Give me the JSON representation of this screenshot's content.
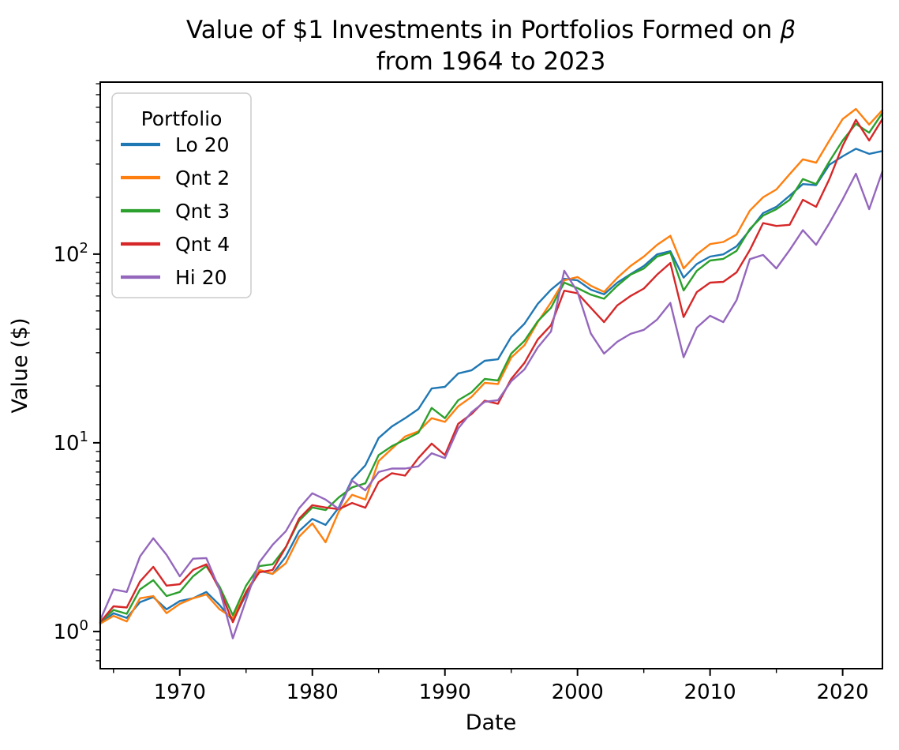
{
  "figure": {
    "title_line1_prefix": "Value of $1 Investments in Portfolios Formed on ",
    "title_line1_beta": "β",
    "title_line2": "from 1964 to 2023",
    "x_axis_label": "Date",
    "y_axis_label": "Value ($)"
  },
  "legend": {
    "title": "Portfolio"
  },
  "chart_data": {
    "type": "line",
    "title": "Value of $1 Investments in Portfolios Formed on β from 1964 to 2023",
    "xlabel": "Date",
    "ylabel": "Value ($)",
    "x_scale": "linear",
    "y_scale": "log",
    "grid": false,
    "legend_title": "Portfolio",
    "legend_position": "upper left",
    "xlim": [
      1964,
      2023
    ],
    "ylim": [
      0.635,
      816
    ],
    "x_major_ticks": [
      1970,
      1980,
      1990,
      2000,
      2010,
      2020
    ],
    "x_minor_ticks": [
      1965,
      1975,
      1985,
      1995,
      2005,
      2015
    ],
    "y_major_tick_exponents": [
      0,
      1,
      2
    ],
    "years": [
      1964,
      1965,
      1966,
      1967,
      1968,
      1969,
      1970,
      1971,
      1972,
      1973,
      1974,
      1975,
      1976,
      1977,
      1978,
      1979,
      1980,
      1981,
      1982,
      1983,
      1984,
      1985,
      1986,
      1987,
      1988,
      1989,
      1990,
      1991,
      1992,
      1993,
      1994,
      1995,
      1996,
      1997,
      1998,
      1999,
      2000,
      2001,
      2002,
      2003,
      2004,
      2005,
      2006,
      2007,
      2008,
      2009,
      2010,
      2011,
      2012,
      2013,
      2014,
      2015,
      2016,
      2017,
      2018,
      2019,
      2020,
      2021,
      2022,
      2023
    ],
    "series": [
      {
        "name": "Lo 20",
        "color": "#1f77b4",
        "values": [
          1.1,
          1.25,
          1.18,
          1.43,
          1.52,
          1.31,
          1.45,
          1.5,
          1.62,
          1.38,
          1.14,
          1.57,
          2.1,
          2.02,
          2.5,
          3.4,
          3.95,
          3.67,
          4.54,
          6.4,
          7.6,
          10.6,
          12.2,
          13.5,
          15.1,
          19.4,
          19.8,
          23.3,
          24.2,
          27.2,
          27.7,
          36.4,
          42.8,
          54.5,
          64.8,
          74.0,
          72.6,
          64.8,
          61.2,
          70.6,
          78.3,
          86.5,
          99.7,
          103.6,
          75.0,
          88.6,
          97.0,
          99.7,
          110,
          134,
          165,
          178,
          204,
          235,
          232,
          298,
          330,
          362,
          340,
          352
        ]
      },
      {
        "name": "Qnt 2",
        "color": "#ff7f0e",
        "values": [
          1.1,
          1.21,
          1.13,
          1.5,
          1.54,
          1.25,
          1.4,
          1.5,
          1.57,
          1.31,
          1.18,
          1.62,
          2.12,
          2.02,
          2.3,
          3.18,
          3.74,
          2.97,
          4.33,
          5.3,
          5.0,
          8.0,
          9.3,
          10.8,
          11.5,
          13.5,
          12.9,
          15.6,
          17.5,
          20.8,
          20.5,
          28.3,
          32.9,
          43.6,
          55.5,
          72.6,
          75.6,
          68.0,
          63.0,
          74.9,
          86.5,
          97.0,
          112,
          125,
          84.0,
          99.7,
          113,
          116,
          127,
          170,
          200,
          220,
          265,
          318,
          305,
          400,
          520,
          588,
          486,
          580
        ]
      },
      {
        "name": "Qnt 3",
        "color": "#2ca02c",
        "values": [
          1.12,
          1.3,
          1.24,
          1.67,
          1.87,
          1.54,
          1.62,
          1.96,
          2.22,
          1.73,
          1.22,
          1.75,
          2.22,
          2.27,
          2.8,
          3.86,
          4.54,
          4.4,
          5.14,
          5.8,
          6.1,
          8.6,
          9.6,
          10.4,
          11.3,
          15.3,
          13.5,
          16.8,
          18.5,
          21.8,
          21.4,
          29.7,
          34.7,
          44.1,
          52.0,
          70.6,
          66.0,
          61.0,
          58.0,
          68.0,
          77.8,
          83.9,
          97.0,
          102,
          64.2,
          81.5,
          92.5,
          94.4,
          104,
          136,
          160,
          173,
          194,
          250,
          235,
          310,
          400,
          490,
          440,
          560
        ]
      },
      {
        "name": "Qnt 4",
        "color": "#d62728",
        "values": [
          1.12,
          1.36,
          1.34,
          1.84,
          2.2,
          1.75,
          1.78,
          2.12,
          2.27,
          1.67,
          1.12,
          1.62,
          2.06,
          2.12,
          2.8,
          3.96,
          4.67,
          4.54,
          4.45,
          4.8,
          4.53,
          6.2,
          6.9,
          6.7,
          8.3,
          9.9,
          8.6,
          12.6,
          14.2,
          16.7,
          16.1,
          21.8,
          26.5,
          35.3,
          42.0,
          64.0,
          62.0,
          52.0,
          43.6,
          53.5,
          60.0,
          65.7,
          77.8,
          89.8,
          46.4,
          62.9,
          70.6,
          71.3,
          80.0,
          105,
          146,
          141,
          143,
          194,
          178,
          250,
          375,
          515,
          400,
          520
        ]
      },
      {
        "name": "Hi 20",
        "color": "#9467bd",
        "values": [
          1.15,
          1.67,
          1.62,
          2.5,
          3.12,
          2.55,
          1.96,
          2.43,
          2.45,
          1.67,
          0.92,
          1.47,
          2.33,
          2.88,
          3.4,
          4.5,
          5.4,
          5.0,
          4.45,
          6.3,
          5.6,
          7.0,
          7.3,
          7.3,
          7.5,
          8.8,
          8.3,
          11.9,
          14.5,
          16.5,
          16.8,
          21.2,
          24.5,
          32.0,
          38.9,
          81.7,
          63.0,
          38.0,
          29.7,
          34.3,
          37.8,
          39.7,
          45.0,
          55.1,
          28.4,
          40.8,
          47.1,
          43.6,
          57.0,
          94.0,
          99.0,
          84.0,
          105,
          134,
          112,
          146,
          195,
          267,
          173,
          275
        ]
      }
    ]
  }
}
